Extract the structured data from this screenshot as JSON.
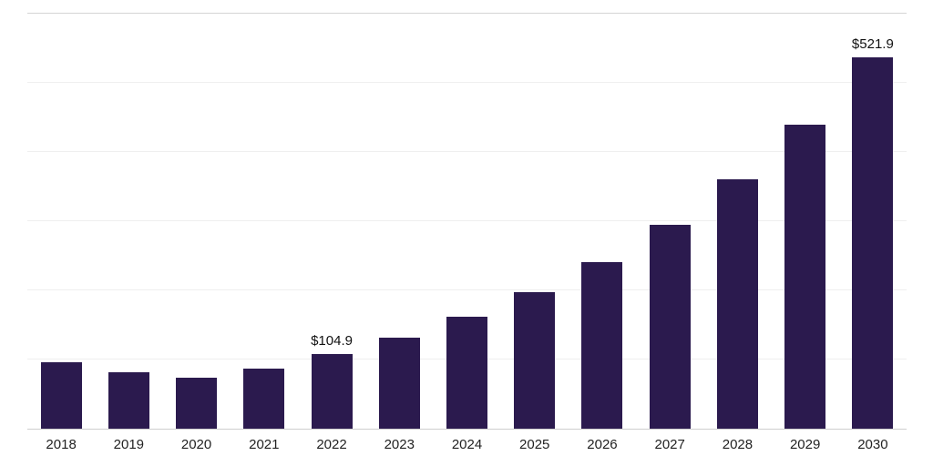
{
  "chart_data": {
    "type": "bar",
    "title": "",
    "categories": [
      "2018",
      "2019",
      "2020",
      "2021",
      "2022",
      "2023",
      "2024",
      "2025",
      "2026",
      "2027",
      "2028",
      "2029",
      "2030"
    ],
    "values": [
      93.4,
      79.3,
      71.6,
      84.4,
      104.9,
      128.2,
      156.7,
      191.5,
      234.1,
      286.1,
      349.7,
      427.4,
      521.9
    ],
    "value_labels": [
      "",
      "",
      "",
      "",
      "$104.9",
      "",
      "",
      "",
      "",
      "",
      "",
      "",
      "$521.9"
    ],
    "bar_color": "#2b1a4e",
    "ylim": [
      0,
      583
    ],
    "grid": true,
    "gridline_count": 6,
    "legend": "none",
    "xlabel": "",
    "ylabel": ""
  }
}
